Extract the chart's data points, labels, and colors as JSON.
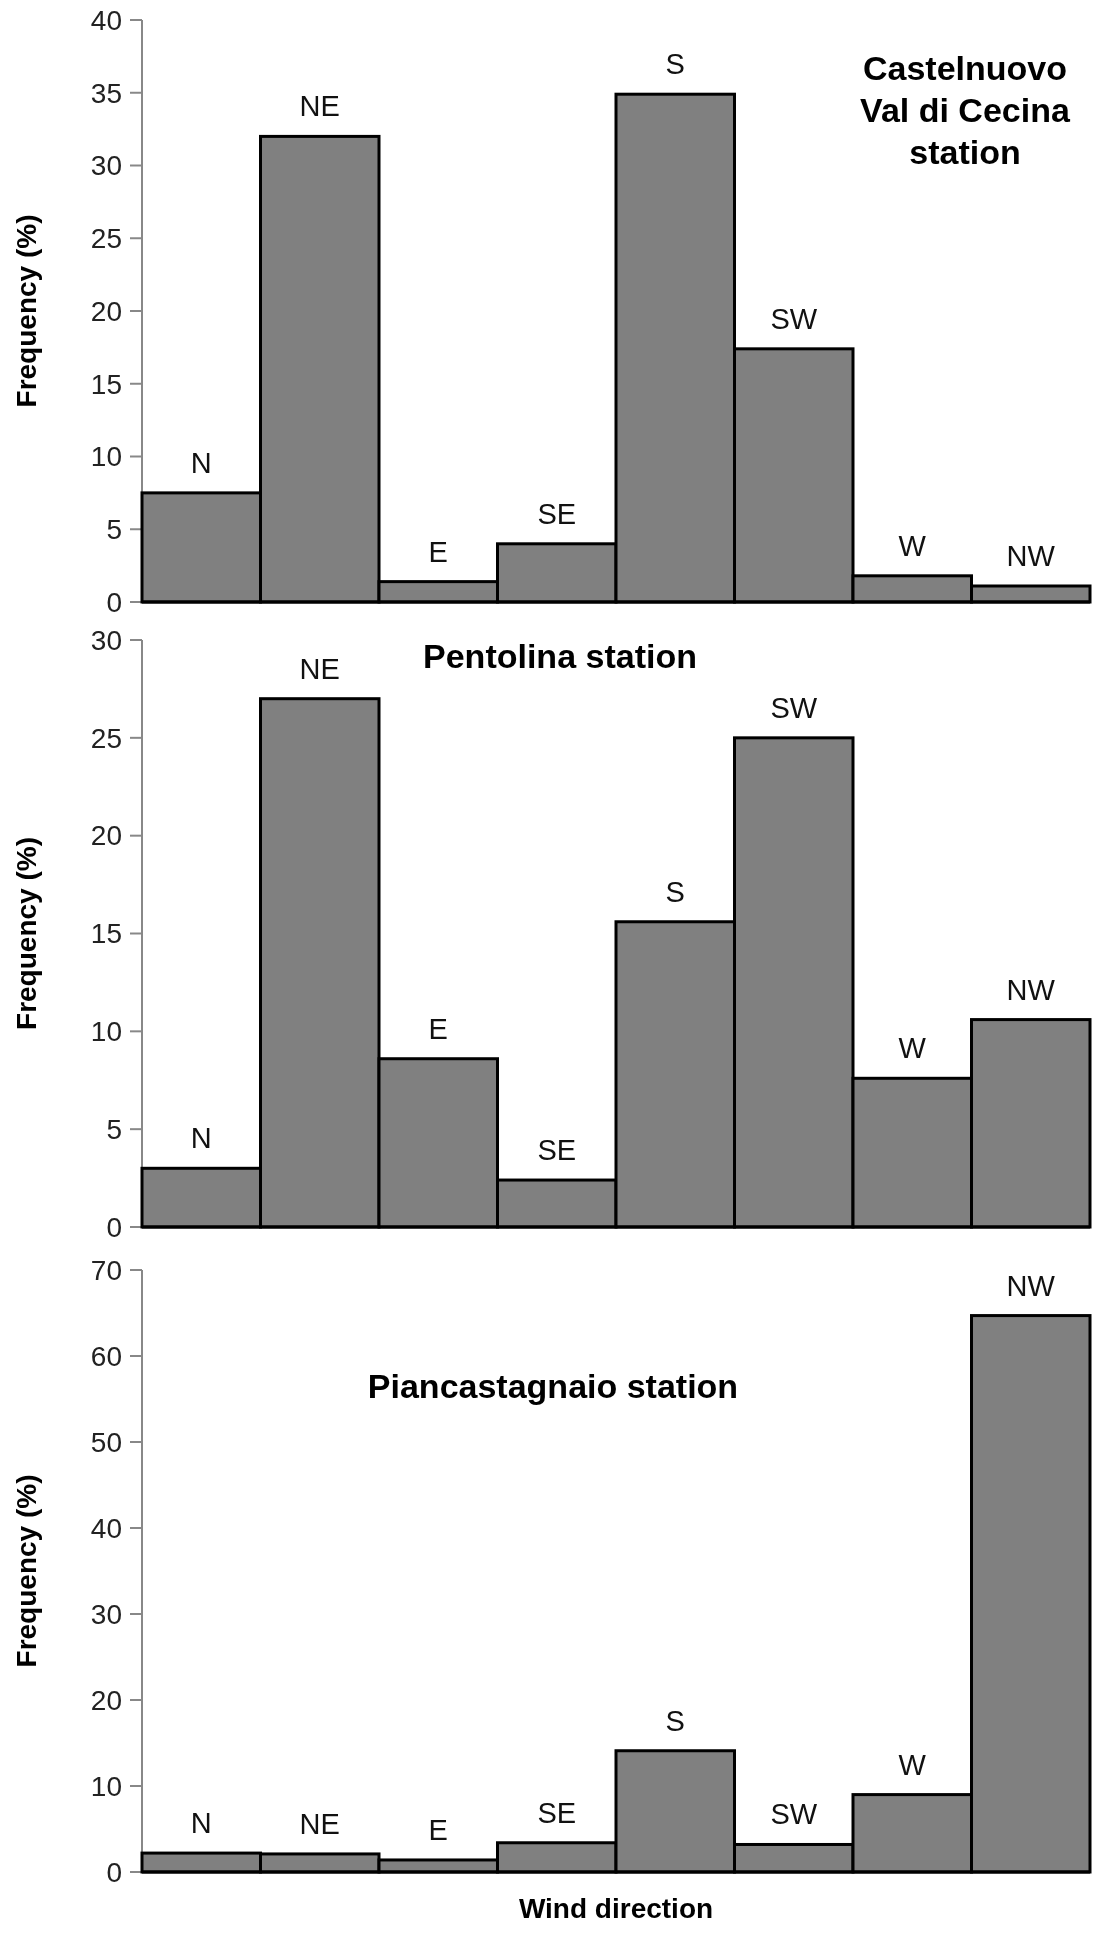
{
  "chart_data": [
    {
      "type": "bar",
      "title": "Castelnuovo\nVal di Cecina\nstation",
      "ylabel": "Frequency (%)",
      "categories": [
        "N",
        "NE",
        "E",
        "SE",
        "S",
        "SW",
        "W",
        "NW"
      ],
      "values": [
        7.5,
        32,
        1.4,
        4,
        34.9,
        17.4,
        1.8,
        1.1
      ],
      "color": "#808080",
      "ylim": [
        0,
        40
      ],
      "yticks": [
        0,
        5,
        10,
        15,
        20,
        25,
        30,
        35,
        40
      ],
      "grid": false
    },
    {
      "type": "bar",
      "title": "Pentolina station",
      "ylabel": "Frequency (%)",
      "categories": [
        "N",
        "NE",
        "E",
        "SE",
        "S",
        "SW",
        "W",
        "NW"
      ],
      "values": [
        3,
        27,
        8.6,
        2.4,
        15.6,
        25,
        7.6,
        10.6
      ],
      "color": "#808080",
      "ylim": [
        0,
        30
      ],
      "yticks": [
        0,
        5,
        10,
        15,
        20,
        25,
        30
      ],
      "grid": false
    },
    {
      "type": "bar",
      "title": "Piancastagnaio station",
      "xlabel": "Wind direction",
      "ylabel": "Frequency (%)",
      "categories": [
        "N",
        "NE",
        "E",
        "SE",
        "S",
        "SW",
        "W",
        "NW"
      ],
      "values": [
        2.2,
        2.1,
        1.4,
        3.4,
        14.1,
        3.2,
        9,
        64.7
      ],
      "color": "#808080",
      "ylim": [
        0,
        70
      ],
      "yticks": [
        0,
        10,
        20,
        30,
        40,
        50,
        60,
        70
      ],
      "grid": false
    }
  ]
}
